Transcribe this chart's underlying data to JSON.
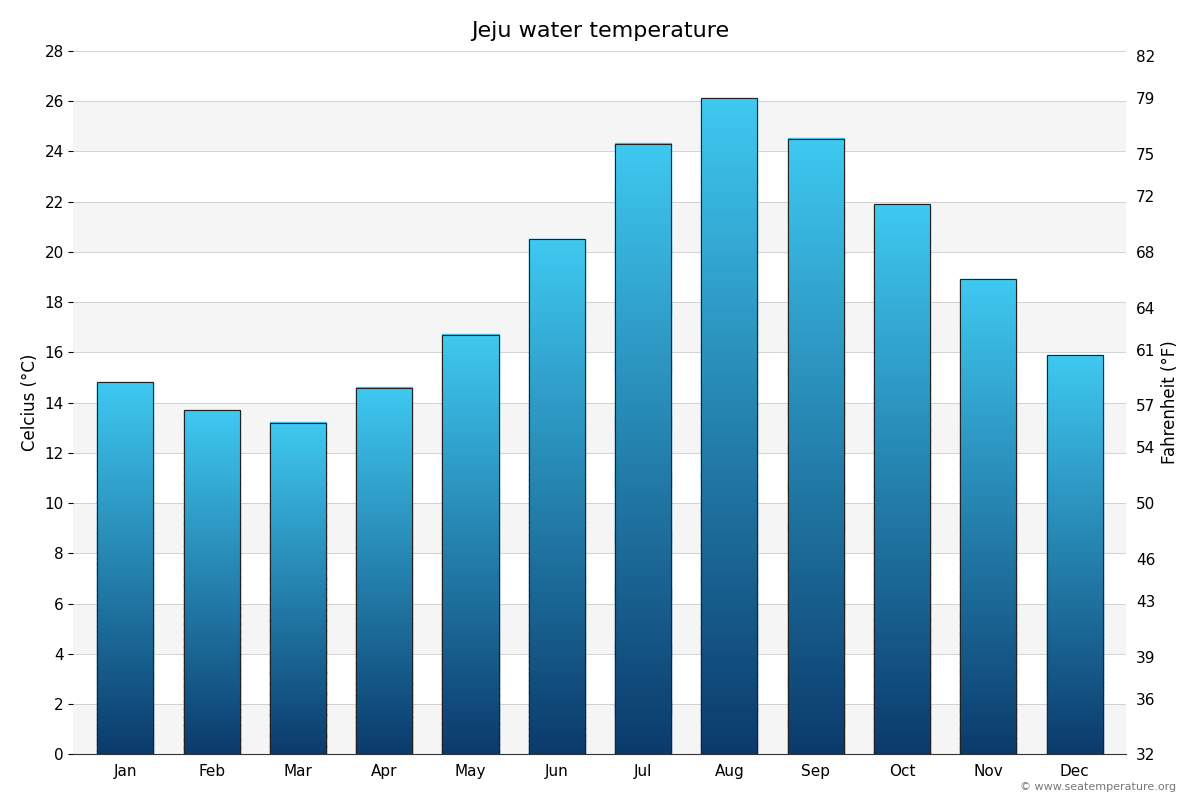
{
  "title": "Jeju water temperature",
  "months": [
    "Jan",
    "Feb",
    "Mar",
    "Apr",
    "May",
    "Jun",
    "Jul",
    "Aug",
    "Sep",
    "Oct",
    "Nov",
    "Dec"
  ],
  "temperatures_c": [
    14.8,
    13.7,
    13.2,
    14.6,
    16.7,
    20.5,
    24.3,
    26.1,
    24.5,
    21.9,
    18.9,
    15.9
  ],
  "ylabel_left": "Celcius (°C)",
  "ylabel_right": "Fahrenheit (°F)",
  "ylim_c": [
    0,
    28
  ],
  "yticks_c": [
    0,
    2,
    4,
    6,
    8,
    10,
    12,
    14,
    16,
    18,
    20,
    22,
    24,
    26,
    28
  ],
  "yticks_f": [
    32,
    36,
    39,
    43,
    46,
    50,
    54,
    57,
    61,
    64,
    68,
    72,
    75,
    79,
    82
  ],
  "bar_color_top": "#3ec8f0",
  "bar_color_bottom": "#0a3a6b",
  "band_color_light": "#f5f5f5",
  "band_color_white": "#ffffff",
  "bar_edge_color": "#222222",
  "title_fontsize": 16,
  "axis_fontsize": 12,
  "tick_fontsize": 11,
  "copyright_text": "© www.seatemperature.org"
}
